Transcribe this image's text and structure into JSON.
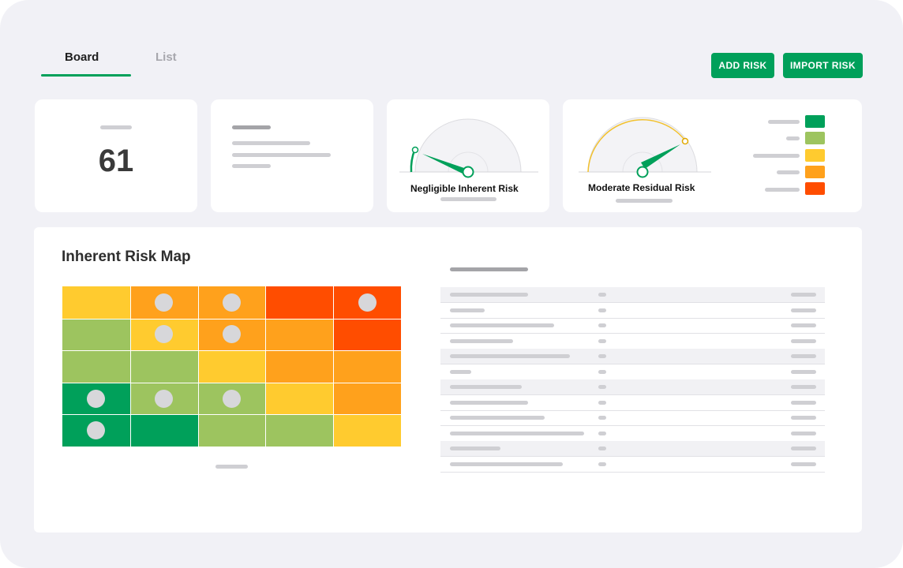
{
  "tabs": [
    {
      "label": "Board",
      "active": true
    },
    {
      "label": "List",
      "active": false
    }
  ],
  "actions": {
    "add_risk": "ADD RISK",
    "import_risk": "IMPORT RISK"
  },
  "kpi": {
    "value": "61"
  },
  "gauges": {
    "inherent": {
      "label": "Negligible Inherent Risk",
      "color": "#00a05a",
      "level": 0.06
    },
    "residual": {
      "label": "Moderate Residual Risk",
      "color": "#00a05a",
      "arc_color": "#f2c12e",
      "level": 0.82
    }
  },
  "legend": {
    "colors": [
      "#00a05a",
      "#9dc45f",
      "#ffcb2f",
      "#ffa11c",
      "#ff4d00"
    ]
  },
  "risk_map": {
    "title": "Inherent Risk Map",
    "grid": [
      [
        "#ffcb2f",
        "#ffa11c",
        "#ffa11c",
        "#ff4d00",
        "#ff4d00"
      ],
      [
        "#9dc45f",
        "#ffcb2f",
        "#ffa11c",
        "#ffa11c",
        "#ff4d00"
      ],
      [
        "#9dc45f",
        "#9dc45f",
        "#ffcb2f",
        "#ffa11c",
        "#ffa11c"
      ],
      [
        "#00a05a",
        "#9dc45f",
        "#9dc45f",
        "#ffcb2f",
        "#ffa11c"
      ],
      [
        "#00a05a",
        "#00a05a",
        "#9dc45f",
        "#9dc45f",
        "#ffcb2f"
      ]
    ],
    "markers": [
      [
        false,
        true,
        true,
        false,
        true
      ],
      [
        false,
        true,
        true,
        false,
        false
      ],
      [
        false,
        false,
        false,
        false,
        false
      ],
      [
        true,
        true,
        true,
        false,
        false
      ],
      [
        true,
        false,
        false,
        false,
        false
      ]
    ]
  },
  "colors": {
    "accent": "#00a05a",
    "background": "#f1f1f6",
    "placeholder": "#cfcfd3"
  }
}
